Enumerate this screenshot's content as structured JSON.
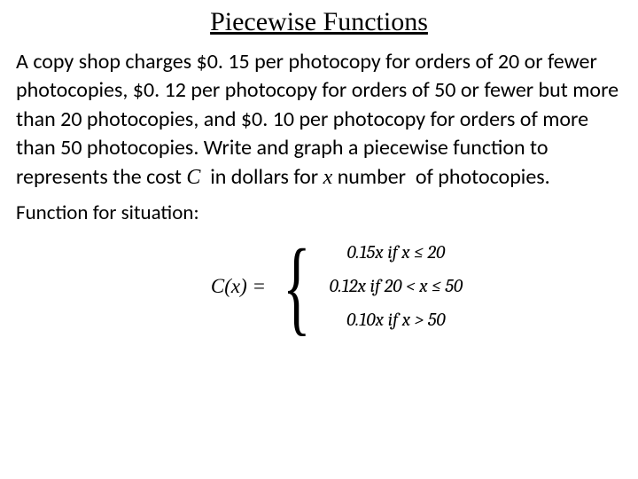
{
  "title": "Piecewise Functions",
  "problem_html": "A copy shop charges $0. 15 per photocopy for orders of 20 or fewer photocopies, $0. 12 per photocopy for orders of 50 or fewer but more than 20 photocopies, and $0. 10 per photocopy for orders of more than 50 photocopies. Write and graph a piecewise function to represents the cost C  in dollars for x number  of photocopies.",
  "sublabel": "Function for situation:",
  "function_name": "C(x) =",
  "cases": {
    "type": "piecewise",
    "brace": "{",
    "lines": [
      "0.15x if  x ≤ 20",
      "0.12x if  20 < x ≤ 50",
      "0.10x if  x > 50"
    ]
  },
  "styling": {
    "background_color": "#ffffff",
    "text_color": "#000000",
    "title_fontsize": 30,
    "body_fontsize": 24,
    "math_fontsize": 21,
    "title_font": "Times New Roman",
    "body_font": "Calibri",
    "math_font": "Cambria"
  }
}
